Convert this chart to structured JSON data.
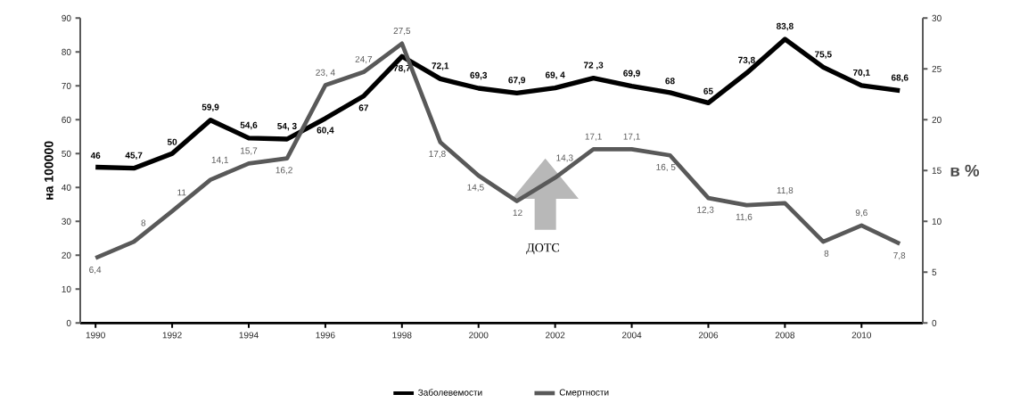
{
  "chart_data": {
    "type": "line",
    "ylabel": "на 100000",
    "y2label": "в %",
    "x": [
      1990,
      1991,
      1992,
      1993,
      1994,
      1995,
      1996,
      1997,
      1998,
      1999,
      2000,
      2001,
      2002,
      2003,
      2004,
      2005,
      2006,
      2007,
      2008,
      2009,
      2010,
      2011
    ],
    "xlim": [
      1989.6,
      2011.6
    ],
    "xticks": [
      1990,
      1992,
      1994,
      1996,
      1998,
      2000,
      2002,
      2004,
      2006,
      2008,
      2010
    ],
    "ylim": [
      0,
      90
    ],
    "yticks": [
      0,
      10,
      20,
      30,
      40,
      50,
      60,
      70,
      80,
      90
    ],
    "y2lim": [
      0,
      30
    ],
    "y2ticks": [
      0,
      5,
      10,
      15,
      20,
      25,
      30
    ],
    "series": [
      {
        "name": "Заболевемости",
        "color": "#000000",
        "values": [
          46,
          45.7,
          50,
          59.9,
          54.6,
          54.3,
          60.4,
          67,
          78.7,
          72.1,
          69.3,
          67.9,
          69.4,
          72.3,
          69.9,
          68,
          65,
          73.8,
          83.8,
          75.5,
          70.1,
          68.6
        ],
        "value_labels": [
          "46",
          "45,7",
          "50",
          "59,9",
          "54,6",
          "54, 3",
          "60,4",
          "67",
          "78,7",
          "72,1",
          "69,3",
          "67,9",
          "69, 4",
          "72 ,3",
          "69,9",
          "68",
          "65",
          "73,8",
          "83,8",
          "75,5",
          "70,1",
          "68,6"
        ]
      },
      {
        "name": "Смертности",
        "color": "#595959",
        "axis": "y2",
        "values": [
          6.4,
          8,
          11,
          14.1,
          15.7,
          16.2,
          23.4,
          24.7,
          27.5,
          17.8,
          14.5,
          12,
          14.3,
          17.1,
          17.1,
          16.5,
          12.3,
          11.6,
          11.8,
          8,
          9.6,
          7.8
        ],
        "value_labels": [
          "6,4",
          "8",
          "11",
          "14,1",
          "15,7",
          "16,2",
          "23, 4",
          "24,7",
          "27,5",
          "17,8",
          "14,5",
          "12",
          "14,3",
          "17,1",
          "17,1",
          "16, 5",
          "12,3",
          "11,6",
          "11,8",
          "8",
          "9,6",
          "7,8"
        ]
      }
    ],
    "annotations": [
      "ДОТС"
    ],
    "legend": "bottom",
    "marker": "none",
    "line_style": "solid"
  }
}
